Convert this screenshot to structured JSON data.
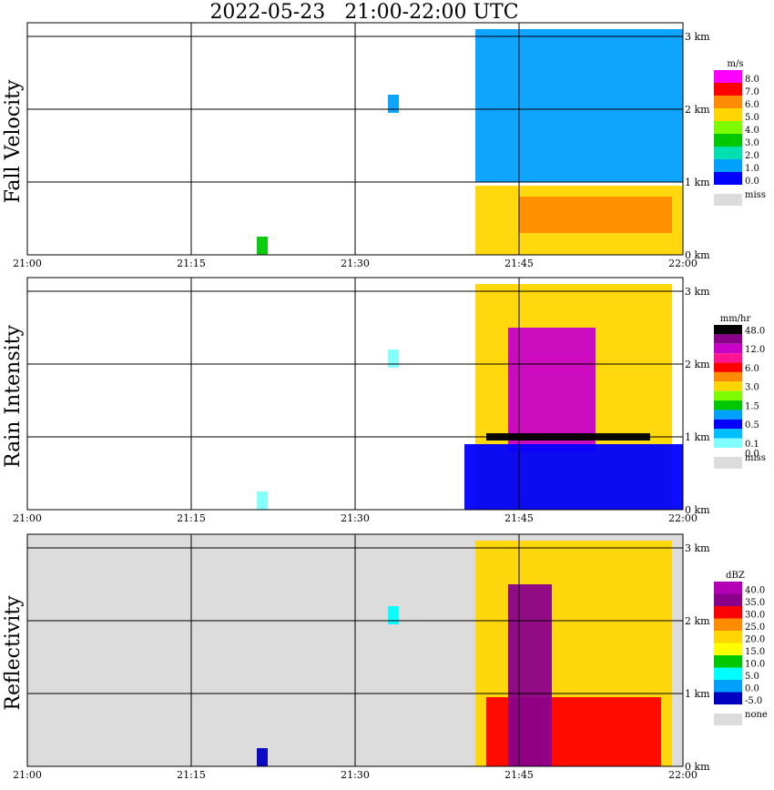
{
  "title": "2022-05-23   21:00-22:00 UTC",
  "colors": {
    "background": "#ffffff",
    "missing": "#dcdcdc",
    "grid": "#000000"
  },
  "chart_data": [
    {
      "type": "heatmap",
      "ylabel": "Fall Velocity",
      "x_ticks": [
        "21:00",
        "21:15",
        "21:30",
        "21:45",
        "22:00"
      ],
      "y_ticks": [
        "0 km",
        "1 km",
        "2 km",
        "3 km"
      ],
      "xlim": [
        "21:00",
        "22:00"
      ],
      "ylim_km": [
        0,
        3.2
      ],
      "legend": {
        "unit": "m/s",
        "labels": [
          "8.0",
          "7.0",
          "6.0",
          "5.0",
          "4.0",
          "3.0",
          "2.0",
          "1.0",
          "0.0"
        ],
        "colors": [
          "#ff00ff",
          "#ff0000",
          "#ff8c00",
          "#ffd700",
          "#7cfc00",
          "#00c800",
          "#00e0b0",
          "#00a0ff",
          "#0000ff"
        ],
        "missing_label": "miss",
        "missing_color": "#dcdcdc"
      },
      "no_signal_fill": "#ffffff",
      "echo_regions": [
        {
          "label": "upper-echo",
          "t_start": "21:41",
          "t_end": "22:00",
          "h_low_km": 1.0,
          "h_high_km": 3.1,
          "level": "1.0"
        },
        {
          "label": "melting-layer",
          "t_start": "21:41",
          "t_end": "22:00",
          "h_low_km": 0.0,
          "h_high_km": 0.95,
          "level": "5.0"
        },
        {
          "label": "core",
          "t_start": "21:45",
          "t_end": "21:59",
          "h_low_km": 0.3,
          "h_high_km": 0.8,
          "level": "6.0"
        },
        {
          "label": "isolated-top",
          "t_start": "21:33",
          "t_end": "21:34",
          "h_low_km": 1.95,
          "h_high_km": 2.2,
          "level": "1.0"
        },
        {
          "label": "near-ground-speck",
          "t_start": "21:21",
          "t_end": "21:22",
          "h_low_km": 0.0,
          "h_high_km": 0.25,
          "level": "3.0"
        }
      ]
    },
    {
      "type": "heatmap",
      "ylabel": "Rain Intensity",
      "x_ticks": [
        "21:00",
        "21:15",
        "21:30",
        "21:45",
        "22:00"
      ],
      "y_ticks": [
        "0 km",
        "1 km",
        "2 km",
        "3 km"
      ],
      "xlim": [
        "21:00",
        "22:00"
      ],
      "ylim_km": [
        0,
        3.2
      ],
      "legend": {
        "unit": "mm/hr",
        "labels": [
          "48.0",
          "",
          "12.0",
          "",
          "6.0",
          "",
          "3.0",
          "",
          "1.5",
          "",
          "0.5",
          "",
          "0.1",
          "0.0"
        ],
        "colors": [
          "#000000",
          "#8b008b",
          "#c800c8",
          "#ff1493",
          "#ff0000",
          "#ff8c00",
          "#ffd700",
          "#7cfc00",
          "#00c800",
          "#00a0ff",
          "#0000ff",
          "#00bfff",
          "#7fffff"
        ],
        "missing_label": "miss",
        "missing_color": "#dcdcdc"
      },
      "no_signal_fill": "#ffffff",
      "echo_regions": [
        {
          "label": "storm-body",
          "t_start": "21:41",
          "t_end": "21:59",
          "h_low_km": 0.0,
          "h_high_km": 3.1,
          "level": "3.0"
        },
        {
          "label": "heavy-core",
          "t_start": "21:44",
          "t_end": "21:52",
          "h_low_km": 0.8,
          "h_high_km": 2.5,
          "level": "12.0"
        },
        {
          "label": "bright-band",
          "t_start": "21:42",
          "t_end": "21:57",
          "h_low_km": 0.95,
          "h_high_km": 1.05,
          "level": "48.0"
        },
        {
          "label": "low-drizzle",
          "t_start": "21:40",
          "t_end": "22:00",
          "h_low_km": 0.0,
          "h_high_km": 0.9,
          "level": "0.5"
        },
        {
          "label": "isolated-top",
          "t_start": "21:33",
          "t_end": "21:34",
          "h_low_km": 1.95,
          "h_high_km": 2.2,
          "level": "0.1"
        },
        {
          "label": "near-ground-speck",
          "t_start": "21:21",
          "t_end": "21:22",
          "h_low_km": 0.0,
          "h_high_km": 0.25,
          "level": "0.1"
        }
      ]
    },
    {
      "type": "heatmap",
      "ylabel": "Reflectivity",
      "x_ticks": [
        "21:00",
        "21:15",
        "21:30",
        "21:45",
        "22:00"
      ],
      "y_ticks": [
        "0 km",
        "1 km",
        "2 km",
        "3 km"
      ],
      "xlim": [
        "21:00",
        "22:00"
      ],
      "ylim_km": [
        0,
        3.2
      ],
      "legend": {
        "unit": "dBZ",
        "labels": [
          "40.0",
          "35.0",
          "30.0",
          "25.0",
          "20.0",
          "15.0",
          "10.0",
          "5.0",
          "0.0",
          "-5.0"
        ],
        "colors": [
          "#b400b4",
          "#8b008b",
          "#ff0000",
          "#ff8c00",
          "#ffd700",
          "#ffff00",
          "#00c800",
          "#00ffff",
          "#00a0ff",
          "#0000c0"
        ],
        "missing_label": "none",
        "missing_color": "#dcdcdc"
      },
      "no_signal_fill": "#dcdcdc",
      "echo_regions": [
        {
          "label": "storm-body",
          "t_start": "21:41",
          "t_end": "21:59",
          "h_low_km": 0.0,
          "h_high_km": 3.1,
          "level": "20.0"
        },
        {
          "label": "core",
          "t_start": "21:42",
          "t_end": "21:58",
          "h_low_km": 0.0,
          "h_high_km": 0.95,
          "level": "30.0"
        },
        {
          "label": "deep-core",
          "t_start": "21:44",
          "t_end": "21:48",
          "h_low_km": 0.0,
          "h_high_km": 2.5,
          "level": "35.0"
        },
        {
          "label": "isolated-top",
          "t_start": "21:33",
          "t_end": "21:34",
          "h_low_km": 1.95,
          "h_high_km": 2.2,
          "level": "5.0"
        },
        {
          "label": "near-ground-speck",
          "t_start": "21:21",
          "t_end": "21:22",
          "h_low_km": 0.0,
          "h_high_km": 0.25,
          "level": "-5.0"
        }
      ]
    }
  ]
}
